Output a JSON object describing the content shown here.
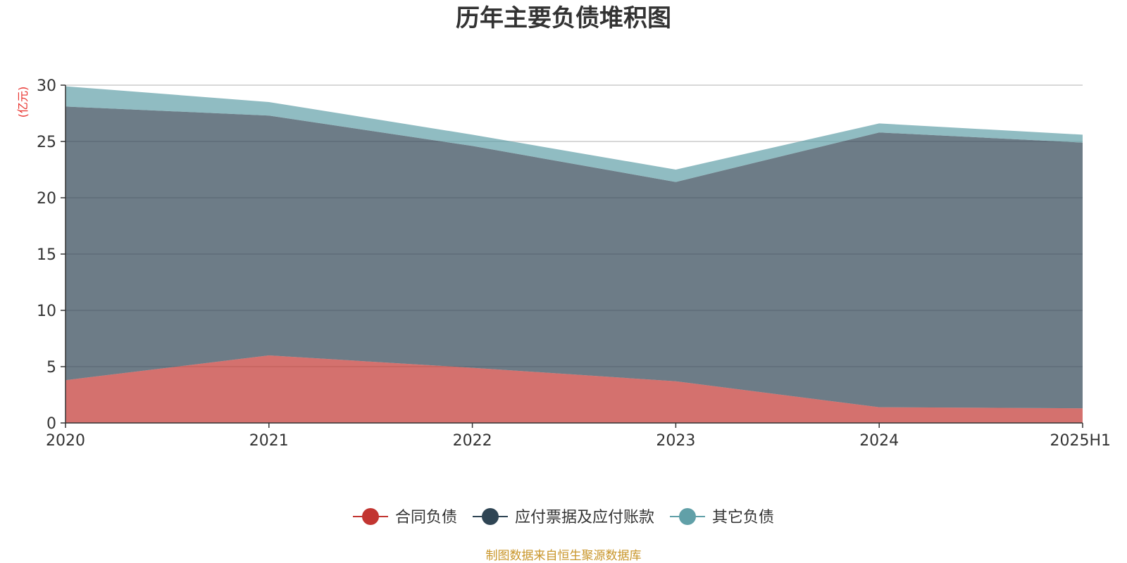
{
  "chart_data": {
    "type": "area",
    "stacked": true,
    "title": "历年主要负债堆积图",
    "unit_label": "(亿元)",
    "source": "制图数据来自恒生聚源数据库",
    "categories": [
      "2020",
      "2021",
      "2022",
      "2023",
      "2024",
      "2025H1"
    ],
    "ylim": [
      0,
      30
    ],
    "yticks": [
      0,
      5,
      10,
      15,
      20,
      25,
      30
    ],
    "grid": true,
    "legend_position": "bottom-center",
    "series": [
      {
        "name": "合同负债",
        "color": "#c23531",
        "values": [
          3.8,
          6.0,
          4.9,
          3.7,
          1.4,
          1.3
        ]
      },
      {
        "name": "应付票据及应付账款",
        "color": "#2f4554",
        "values": [
          24.3,
          21.3,
          19.7,
          17.7,
          24.4,
          23.6
        ]
      },
      {
        "name": "其它负债",
        "color": "#61a0a8",
        "values": [
          1.8,
          1.2,
          1.0,
          1.1,
          0.8,
          0.7
        ]
      }
    ]
  }
}
